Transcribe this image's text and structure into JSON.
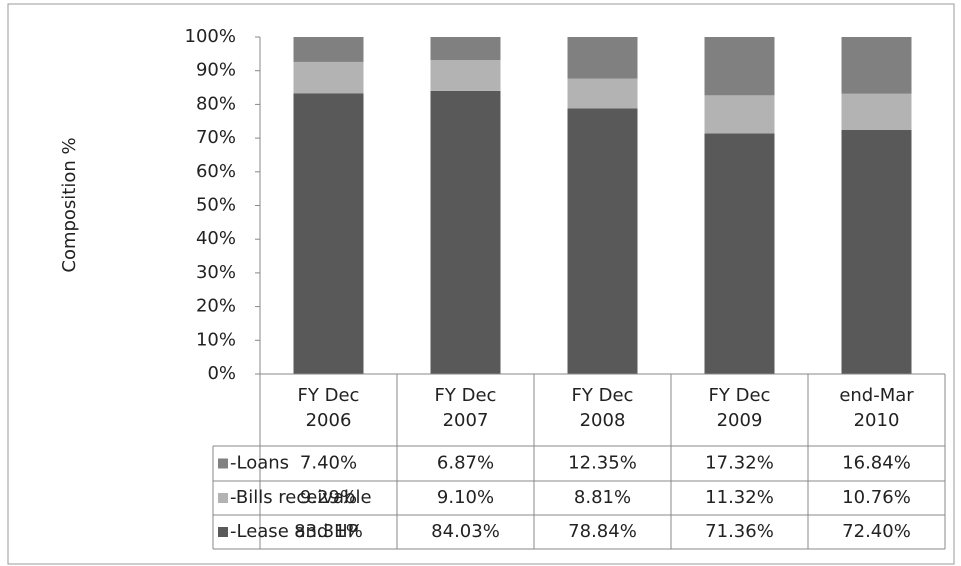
{
  "chart_data": {
    "type": "stacked_bar",
    "y_label": "Composition %",
    "categories": [
      "FY Dec\n2006",
      "FY Dec\n2007",
      "FY Dec\n2008",
      "FY Dec\n2009",
      "end-Mar\n2010"
    ],
    "series": [
      {
        "name": "-Loans",
        "color": "#808080",
        "values": [
          7.4,
          6.87,
          12.35,
          17.32,
          16.84
        ],
        "value_labels": [
          "7.40%",
          "6.87%",
          "12.35%",
          "17.32%",
          "16.84%"
        ]
      },
      {
        "name": "-Bills receivable",
        "color": "#b3b3b3",
        "values": [
          9.29,
          9.1,
          8.81,
          11.32,
          10.76
        ],
        "value_labels": [
          "9.29%",
          "9.10%",
          "8.81%",
          "11.32%",
          "10.76%"
        ]
      },
      {
        "name": "-Lease and HP",
        "color": "#595959",
        "values": [
          83.31,
          84.03,
          78.84,
          71.36,
          72.4
        ],
        "value_labels": [
          "83.31%",
          "84.03%",
          "78.84%",
          "71.36%",
          "72.40%"
        ]
      }
    ],
    "ylim": [
      0,
      100
    ],
    "yticks": [
      {
        "value": 0,
        "label": "0%"
      },
      {
        "value": 10,
        "label": "10%"
      },
      {
        "value": 20,
        "label": "20%"
      },
      {
        "value": 30,
        "label": "30%"
      },
      {
        "value": 40,
        "label": "40%"
      },
      {
        "value": 50,
        "label": "50%"
      },
      {
        "value": 60,
        "label": "60%"
      },
      {
        "value": 70,
        "label": "70%"
      },
      {
        "value": 80,
        "label": "80%"
      },
      {
        "value": 90,
        "label": "90%"
      },
      {
        "value": 100,
        "label": "100%"
      }
    ]
  }
}
